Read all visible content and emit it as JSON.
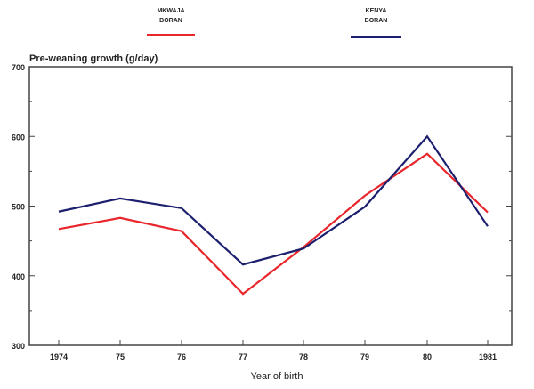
{
  "chart_data": {
    "type": "line",
    "title": "",
    "ylabel": "Pre-weaning growth (g/day)",
    "xlabel": "Year of birth",
    "categories": [
      "1974",
      "75",
      "76",
      "77",
      "78",
      "79",
      "80",
      "1981"
    ],
    "ylim": [
      300,
      700
    ],
    "yticks": [
      300,
      400,
      500,
      600,
      700
    ],
    "grid": false,
    "legend_placement": "top",
    "series": [
      {
        "name": "MKWAJA BORAN",
        "name_line1": "MKWAJA",
        "name_line2": "BORAN",
        "color": "#e8262b",
        "values": [
          467,
          483,
          464,
          374,
          441,
          515,
          575,
          491
        ]
      },
      {
        "name": "KENYA BORAN",
        "name_line1": "KENYA",
        "name_line2": "BORAN",
        "color": "#1c1f6e",
        "values": [
          492,
          511,
          497,
          416,
          439,
          499,
          600,
          471
        ]
      }
    ]
  }
}
